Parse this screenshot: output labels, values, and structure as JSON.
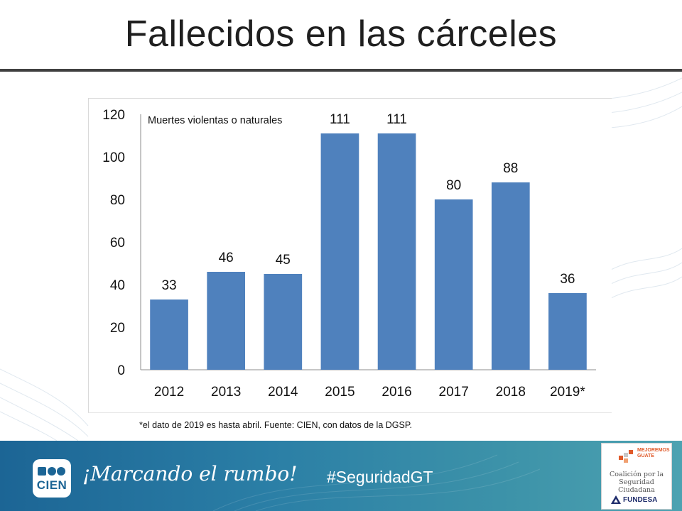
{
  "slide": {
    "title": "Fallecidos en las cárceles",
    "footnote": "*el dato de 2019 es hasta abril. Fuente: CIEN, con datos de la DGSP."
  },
  "chart_data": {
    "type": "bar",
    "title": "",
    "annotation": "Muertes violentas o naturales",
    "categories": [
      "2012",
      "2013",
      "2014",
      "2015",
      "2016",
      "2017",
      "2018",
      "2019*"
    ],
    "values": [
      33,
      46,
      45,
      111,
      111,
      80,
      88,
      36
    ],
    "data_labels": [
      "33",
      "46",
      "45",
      "111",
      "111",
      "80",
      "88",
      "36"
    ],
    "ylim": [
      0,
      120
    ],
    "yticks": [
      0,
      20,
      40,
      60,
      80,
      100,
      120
    ],
    "xlabel": "",
    "ylabel": "",
    "grid": false,
    "bar_color": "#4f81bd"
  },
  "footer": {
    "logo_text": "CIEN",
    "slogan": "¡Marcando el rumbo!",
    "hashtag": "#SeguridadGT",
    "partner": {
      "line1": "MEJOREMOS GUATE",
      "line2": "Coalición por la Seguridad Ciudadana",
      "line3": "FUNDESA"
    }
  }
}
